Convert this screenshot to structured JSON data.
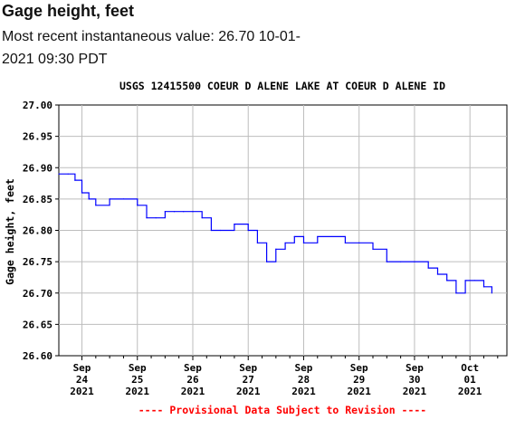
{
  "header": {
    "title": "Gage height, feet",
    "subtitle": "Most recent instantaneous value: 26.70 10-01-2021   09:30 PDT"
  },
  "chart_data": {
    "type": "line",
    "title": "USGS 12415500 COEUR D ALENE LAKE AT COEUR D ALENE ID",
    "ylabel": "Gage height, feet",
    "xlabel": "",
    "ylim": [
      26.6,
      27.0
    ],
    "y_ticks": [
      "27.00",
      "26.95",
      "26.90",
      "26.85",
      "26.80",
      "26.75",
      "26.70",
      "26.65",
      "26.60"
    ],
    "x_ticks": [
      {
        "lines": [
          "Sep",
          "24",
          "2021"
        ]
      },
      {
        "lines": [
          "Sep",
          "25",
          "2021"
        ]
      },
      {
        "lines": [
          "Sep",
          "26",
          "2021"
        ]
      },
      {
        "lines": [
          "Sep",
          "27",
          "2021"
        ]
      },
      {
        "lines": [
          "Sep",
          "28",
          "2021"
        ]
      },
      {
        "lines": [
          "Sep",
          "29",
          "2021"
        ]
      },
      {
        "lines": [
          "Sep",
          "30",
          "2021"
        ]
      },
      {
        "lines": [
          "Oct",
          "01",
          "2021"
        ]
      }
    ],
    "x_range": [
      "2021-09-23 14:00",
      "2021-10-01 16:00"
    ],
    "grid": true,
    "line_color": "#0000ff",
    "series": [
      {
        "x": [
          "2021-09-23 14:00",
          "2021-09-23 18:00",
          "2021-09-23 21:00",
          "2021-09-24 00:00",
          "2021-09-24 03:00",
          "2021-09-24 06:00",
          "2021-09-24 12:00",
          "2021-09-24 18:00",
          "2021-09-25 00:00",
          "2021-09-25 04:00",
          "2021-09-25 08:00",
          "2021-09-25 12:00",
          "2021-09-25 16:00",
          "2021-09-25 20:00",
          "2021-09-26 00:00",
          "2021-09-26 04:00",
          "2021-09-26 08:00",
          "2021-09-26 12:00",
          "2021-09-26 18:00",
          "2021-09-27 00:00",
          "2021-09-27 04:00",
          "2021-09-27 08:00",
          "2021-09-27 12:00",
          "2021-09-27 16:00",
          "2021-09-27 20:00",
          "2021-09-28 00:00",
          "2021-09-28 06:00",
          "2021-09-28 12:00",
          "2021-09-28 18:00",
          "2021-09-29 00:00",
          "2021-09-29 06:00",
          "2021-09-29 12:00",
          "2021-09-29 18:00",
          "2021-09-30 00:00",
          "2021-09-30 06:00",
          "2021-09-30 10:00",
          "2021-09-30 14:00",
          "2021-09-30 18:00",
          "2021-09-30 22:00",
          "2021-10-01 02:00",
          "2021-10-01 06:00",
          "2021-10-01 09:30"
        ],
        "y": [
          26.89,
          26.89,
          26.88,
          26.86,
          26.85,
          26.84,
          26.85,
          26.85,
          26.84,
          26.82,
          26.82,
          26.83,
          26.83,
          26.83,
          26.83,
          26.82,
          26.8,
          26.8,
          26.81,
          26.8,
          26.78,
          26.75,
          26.77,
          26.78,
          26.79,
          26.78,
          26.79,
          26.79,
          26.78,
          26.78,
          26.77,
          26.75,
          26.75,
          26.75,
          26.74,
          26.73,
          26.72,
          26.7,
          26.72,
          26.72,
          26.71,
          26.7
        ]
      }
    ]
  },
  "footer": {
    "note": "---- Provisional Data Subject to Revision ----",
    "note_color": "#ff0000"
  }
}
